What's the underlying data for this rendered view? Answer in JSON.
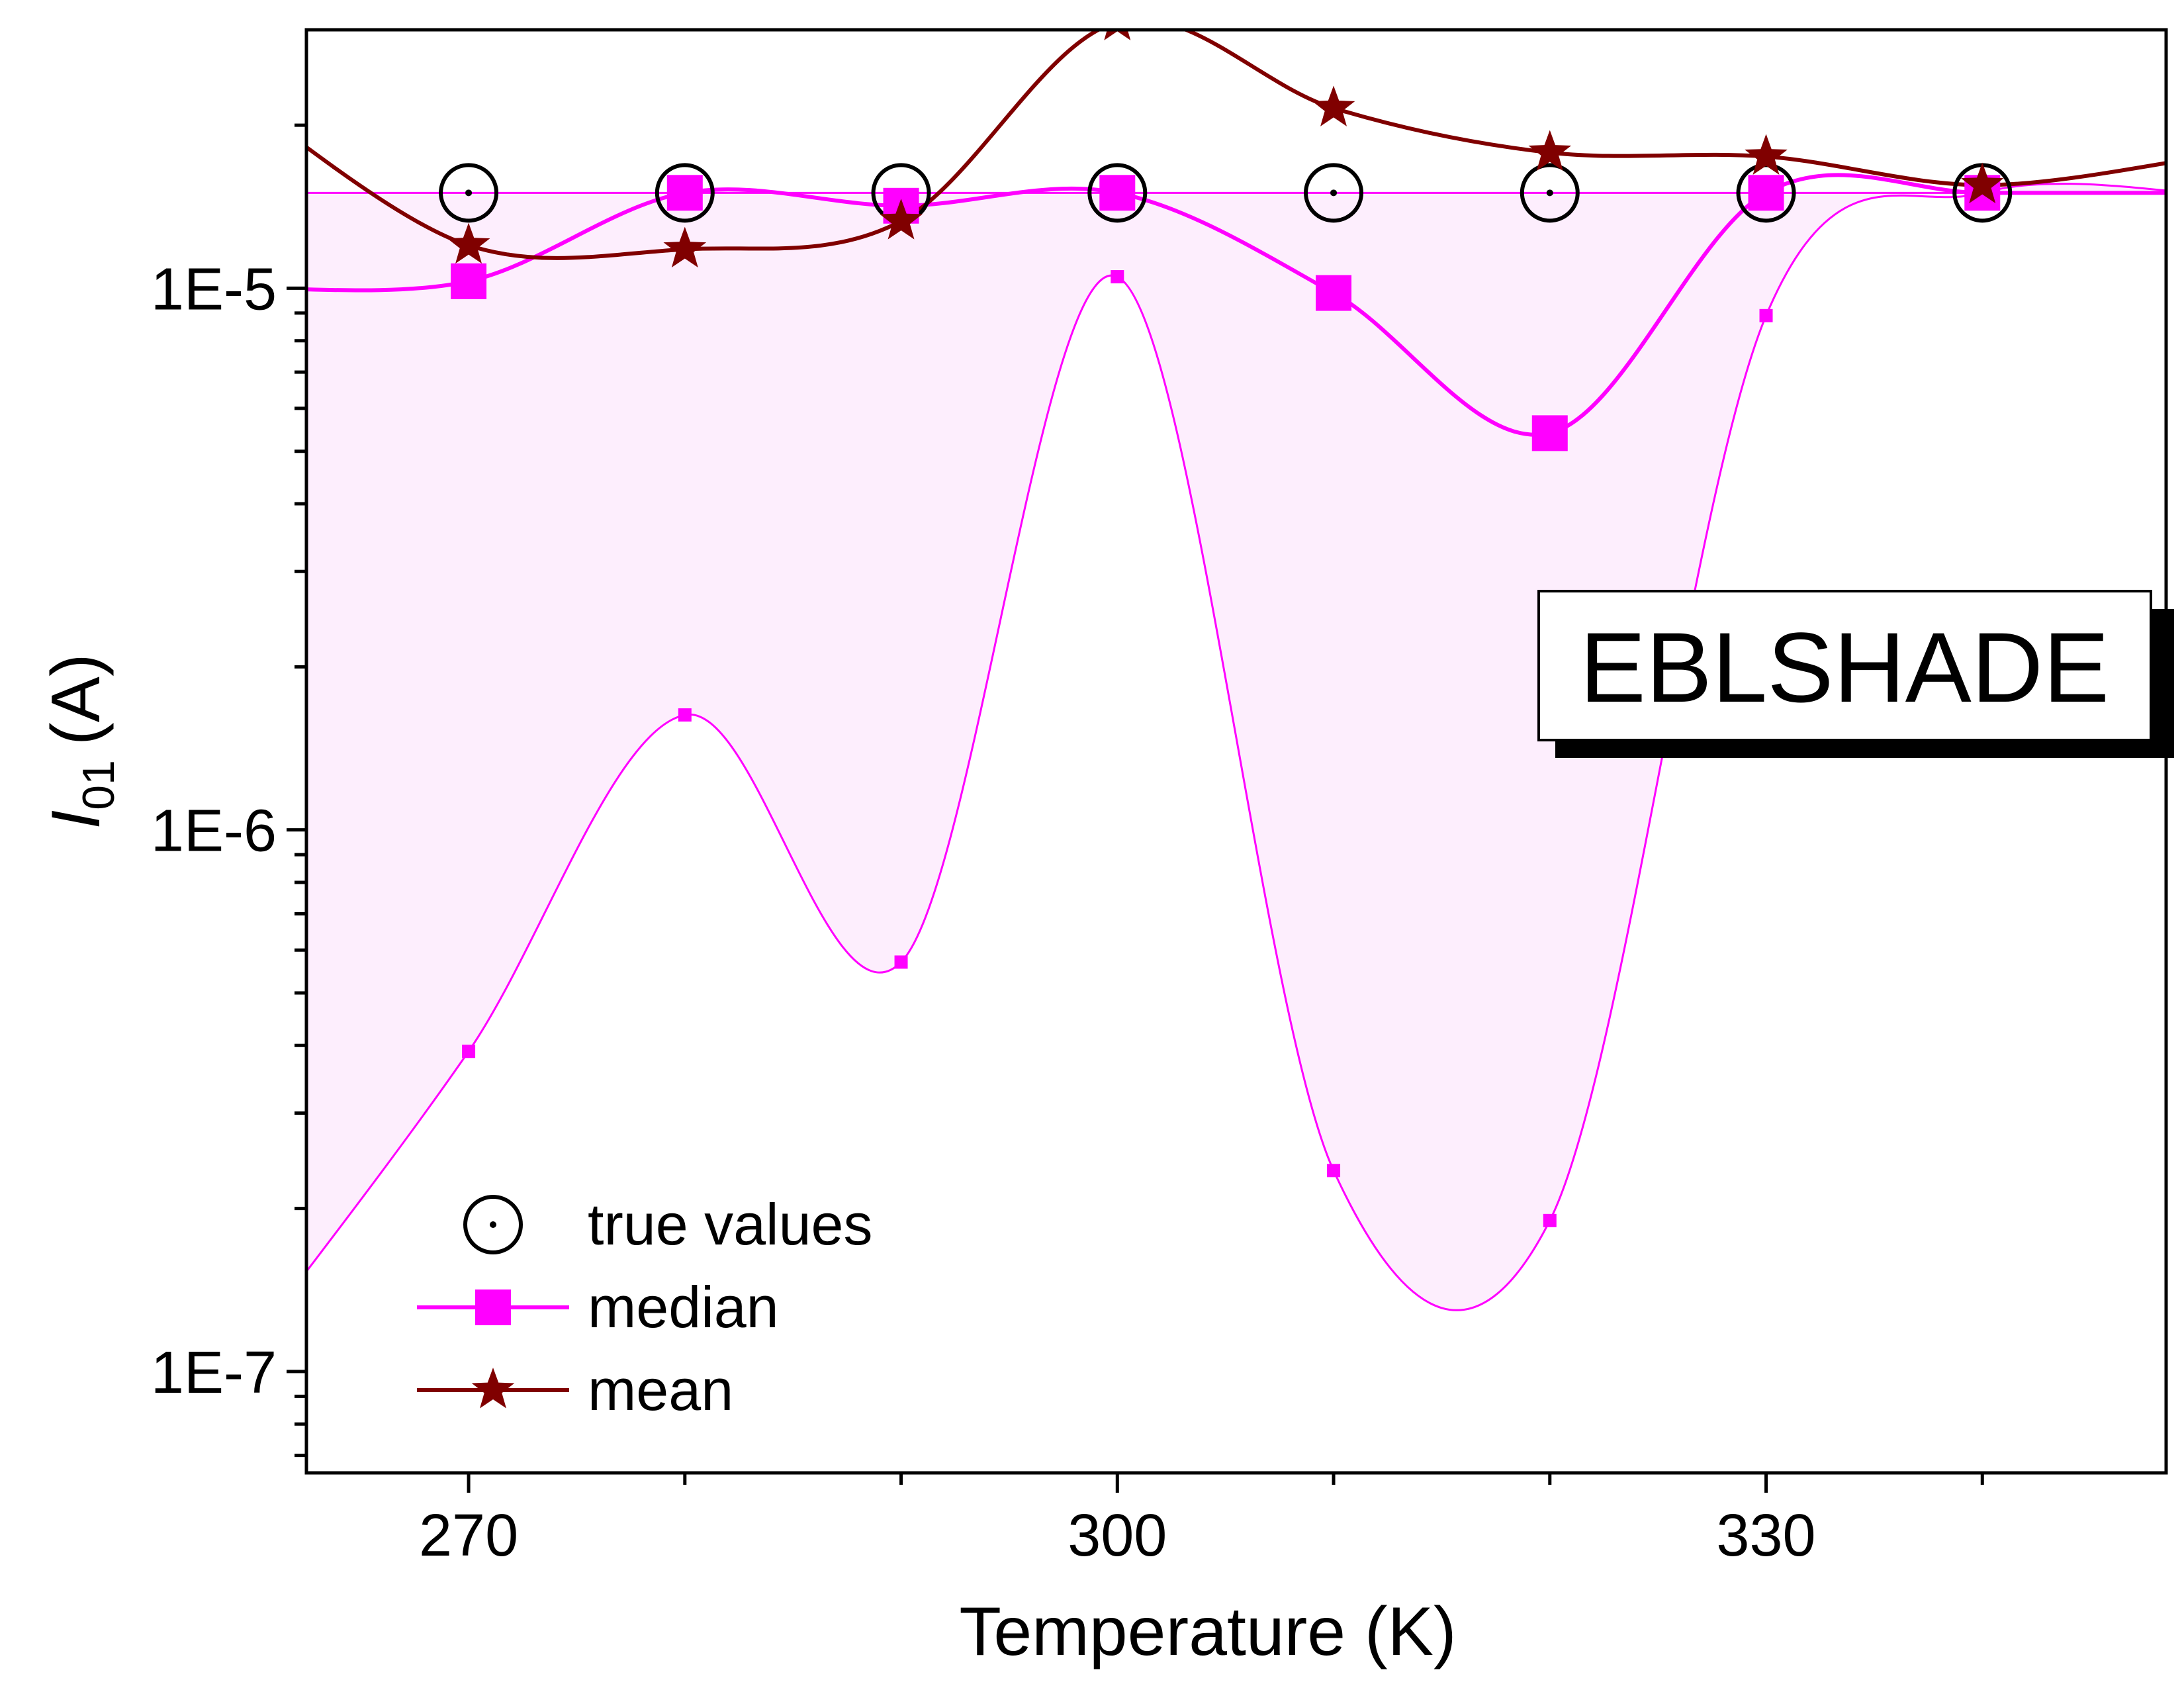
{
  "chart_data": {
    "type": "line",
    "xlabel": "Temperature (K)",
    "ylabel_main": "I",
    "ylabel_sub": "01",
    "ylabel_unit": "(A)",
    "xlim": [
      262.5,
      348.5
    ],
    "ylim": [
      6.5e-08,
      3e-05
    ],
    "yscale": "log",
    "x_ticks": [
      {
        "value": 270,
        "label": "270"
      },
      {
        "value": 300,
        "label": "300"
      },
      {
        "value": 330,
        "label": "330"
      }
    ],
    "y_ticks": [
      {
        "value": 1e-07,
        "label": "1E-7"
      },
      {
        "value": 1e-06,
        "label": "1E-6"
      },
      {
        "value": 1e-05,
        "label": "1E-5"
      }
    ],
    "annotation": "EBLSHADE",
    "x": [
      260,
      270,
      280,
      290,
      300,
      310,
      320,
      330,
      340,
      350
    ],
    "band_lower": [
      1.13e-07,
      3.9e-07,
      1.63e-06,
      5.7e-07,
      1.05e-05,
      2.35e-07,
      1.9e-07,
      8.9e-06,
      1.5e-05,
      1.5e-05
    ],
    "band_upper": [
      1.5e-05,
      1.5e-05,
      1.5e-05,
      1.5e-05,
      1.5e-05,
      1.5e-05,
      1.5e-05,
      1.5e-05,
      1.5e-05,
      1.5e-05
    ],
    "series": [
      {
        "name": "true values",
        "values": [
          1.5e-05,
          1.5e-05,
          1.5e-05,
          1.5e-05,
          1.5e-05,
          1.5e-05,
          1.5e-05,
          1.5e-05,
          1.5e-05,
          1.5e-05
        ]
      },
      {
        "name": "median",
        "values": [
          1e-05,
          1.03e-05,
          1.5e-05,
          1.42e-05,
          1.5e-05,
          9.8e-06,
          5.4e-06,
          1.5e-05,
          1.5e-05,
          1.5e-05
        ]
      },
      {
        "name": "mean",
        "values": [
          2.15e-05,
          1.2e-05,
          1.18e-05,
          1.33e-05,
          3.1e-05,
          2.15e-05,
          1.78e-05,
          1.75e-05,
          1.55e-05,
          1.74e-05
        ]
      }
    ],
    "legend": {
      "position": "bottom-left"
    },
    "colors": {
      "true": "#000000",
      "median": "#ff00ff",
      "band_line": "#ff00ff",
      "band_fill": "#fdeefd",
      "mean": "#800000"
    },
    "grid": false
  }
}
